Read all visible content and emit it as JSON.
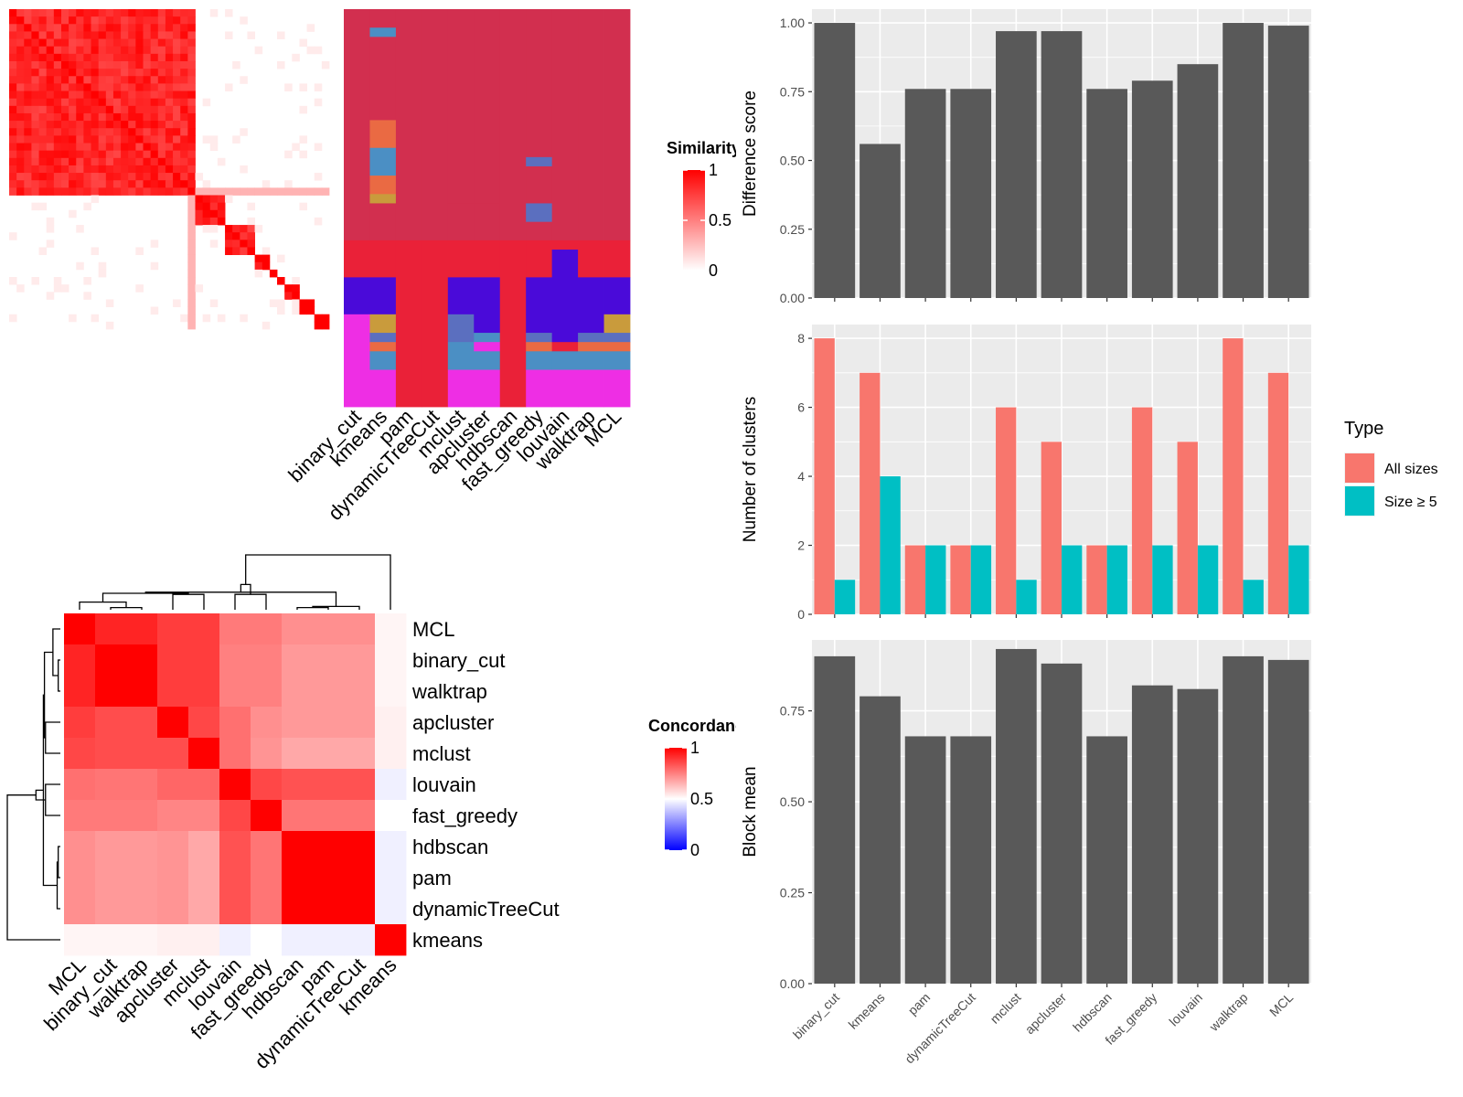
{
  "chart_data": [
    {
      "id": "similarity-heatmap",
      "type": "heatmap",
      "title": "",
      "legend": {
        "title": "Similarity",
        "ticks": [
          "1",
          "0.5",
          "0"
        ],
        "low_color": "#ffffff",
        "high_color": "#ff0000"
      },
      "size": 43,
      "blocks": [
        {
          "start": 0,
          "end": 24,
          "value": 0.85
        },
        {
          "start": 25,
          "end": 28,
          "value": 0.9
        },
        {
          "start": 29,
          "end": 32,
          "value": 0.85
        },
        {
          "start": 33,
          "end": 34,
          "value": 1
        },
        {
          "start": 35,
          "end": 35,
          "value": 1
        },
        {
          "start": 36,
          "end": 36,
          "value": 1
        },
        {
          "start": 37,
          "end": 38,
          "value": 1
        },
        {
          "start": 39,
          "end": 40,
          "value": 1
        },
        {
          "start": 41,
          "end": 42,
          "value": 1
        }
      ],
      "background": 0.0,
      "faint_band_row": 24,
      "faint_band_value": 0.3
    },
    {
      "id": "cluster-assignment-matrix",
      "type": "heatmap",
      "title": "",
      "methods": [
        "binary_cut",
        "kmeans",
        "pam",
        "dynamicTreeCut",
        "mclust",
        "apcluster",
        "hdbscan",
        "fast_greedy",
        "louvain",
        "walktrap",
        "MCL"
      ],
      "palette": {
        "crimson": "#d22f4f",
        "red": "#ea2138",
        "blue": "#4a0ad9",
        "steel": "#4b8fc4",
        "magenta": "#ee2ee4",
        "salmon": "#ea6a43",
        "gold": "#c99b3c",
        "slate": "#5b6fbf"
      },
      "column_segments": [
        [
          [
            0,
            25,
            "crimson"
          ],
          [
            25,
            29,
            "red"
          ],
          [
            29,
            33,
            "blue"
          ],
          [
            33,
            43,
            "magenta"
          ]
        ],
        [
          [
            0,
            2,
            "crimson"
          ],
          [
            2,
            3,
            "steel"
          ],
          [
            3,
            12,
            "crimson"
          ],
          [
            12,
            15,
            "salmon"
          ],
          [
            15,
            18,
            "steel"
          ],
          [
            18,
            20,
            "salmon"
          ],
          [
            20,
            21,
            "gold"
          ],
          [
            21,
            25,
            "crimson"
          ],
          [
            25,
            29,
            "red"
          ],
          [
            29,
            33,
            "blue"
          ],
          [
            33,
            35,
            "gold"
          ],
          [
            35,
            36,
            "slate"
          ],
          [
            36,
            37,
            "salmon"
          ],
          [
            37,
            39,
            "steel"
          ],
          [
            39,
            43,
            "magenta"
          ]
        ],
        [
          [
            0,
            25,
            "crimson"
          ],
          [
            25,
            43,
            "red"
          ]
        ],
        [
          [
            0,
            25,
            "crimson"
          ],
          [
            25,
            43,
            "red"
          ]
        ],
        [
          [
            0,
            21,
            "crimson"
          ],
          [
            21,
            25,
            "crimson"
          ],
          [
            25,
            29,
            "red"
          ],
          [
            29,
            33,
            "blue"
          ],
          [
            33,
            36,
            "slate"
          ],
          [
            36,
            39,
            "steel"
          ],
          [
            39,
            43,
            "magenta"
          ]
        ],
        [
          [
            0,
            21,
            "crimson"
          ],
          [
            21,
            25,
            "crimson"
          ],
          [
            25,
            29,
            "red"
          ],
          [
            29,
            33,
            "blue"
          ],
          [
            33,
            35,
            "blue"
          ],
          [
            35,
            36,
            "steel"
          ],
          [
            36,
            37,
            "magenta"
          ],
          [
            37,
            39,
            "steel"
          ],
          [
            39,
            43,
            "magenta"
          ]
        ],
        [
          [
            0,
            25,
            "crimson"
          ],
          [
            25,
            43,
            "red"
          ]
        ],
        [
          [
            0,
            16,
            "crimson"
          ],
          [
            16,
            17,
            "slate"
          ],
          [
            17,
            21,
            "crimson"
          ],
          [
            21,
            23,
            "slate"
          ],
          [
            23,
            25,
            "crimson"
          ],
          [
            25,
            29,
            "red"
          ],
          [
            29,
            33,
            "blue"
          ],
          [
            33,
            35,
            "blue"
          ],
          [
            35,
            36,
            "slate"
          ],
          [
            36,
            37,
            "salmon"
          ],
          [
            37,
            39,
            "steel"
          ],
          [
            39,
            43,
            "magenta"
          ]
        ],
        [
          [
            0,
            25,
            "crimson"
          ],
          [
            25,
            26,
            "red"
          ],
          [
            26,
            36,
            "blue"
          ],
          [
            36,
            37,
            "red"
          ],
          [
            37,
            39,
            "steel"
          ],
          [
            39,
            43,
            "magenta"
          ]
        ],
        [
          [
            0,
            25,
            "crimson"
          ],
          [
            25,
            29,
            "red"
          ],
          [
            29,
            33,
            "blue"
          ],
          [
            33,
            35,
            "blue"
          ],
          [
            35,
            36,
            "slate"
          ],
          [
            36,
            37,
            "salmon"
          ],
          [
            37,
            39,
            "steel"
          ],
          [
            39,
            43,
            "magenta"
          ]
        ],
        [
          [
            0,
            25,
            "crimson"
          ],
          [
            25,
            29,
            "red"
          ],
          [
            29,
            33,
            "blue"
          ],
          [
            33,
            35,
            "gold"
          ],
          [
            35,
            36,
            "slate"
          ],
          [
            36,
            37,
            "salmon"
          ],
          [
            37,
            39,
            "steel"
          ],
          [
            39,
            43,
            "magenta"
          ]
        ]
      ]
    },
    {
      "id": "concordance-heatmap",
      "type": "heatmap",
      "title": "",
      "legend": {
        "title": "Concordance",
        "ticks": [
          "1",
          "0.5",
          "0"
        ],
        "low_color": "#0000ff",
        "mid_color": "#ffffff",
        "high_color": "#ff0000"
      },
      "rows": [
        "MCL",
        "binary_cut",
        "walktrap",
        "apcluster",
        "mclust",
        "louvain",
        "fast_greedy",
        "hdbscan",
        "pam",
        "dynamicTreeCut",
        "kmeans"
      ],
      "columns": [
        "MCL",
        "binary_cut",
        "walktrap",
        "apcluster",
        "mclust",
        "louvain",
        "fast_greedy",
        "hdbscan",
        "pam",
        "dynamicTreeCut",
        "kmeans"
      ],
      "values": [
        [
          1.0,
          0.93,
          0.93,
          0.88,
          0.88,
          0.76,
          0.76,
          0.72,
          0.72,
          0.72,
          0.52
        ],
        [
          0.93,
          1.0,
          1.0,
          0.88,
          0.88,
          0.75,
          0.75,
          0.7,
          0.7,
          0.7,
          0.52
        ],
        [
          0.93,
          1.0,
          1.0,
          0.88,
          0.88,
          0.75,
          0.75,
          0.7,
          0.7,
          0.7,
          0.52
        ],
        [
          0.88,
          0.85,
          0.85,
          1.0,
          0.86,
          0.78,
          0.72,
          0.7,
          0.7,
          0.7,
          0.53
        ],
        [
          0.86,
          0.85,
          0.85,
          0.85,
          1.0,
          0.78,
          0.71,
          0.67,
          0.67,
          0.67,
          0.53
        ],
        [
          0.78,
          0.77,
          0.77,
          0.8,
          0.8,
          1.0,
          0.86,
          0.84,
          0.84,
          0.84,
          0.47
        ],
        [
          0.76,
          0.76,
          0.76,
          0.74,
          0.74,
          0.86,
          1.0,
          0.77,
          0.77,
          0.77,
          0.5
        ],
        [
          0.72,
          0.7,
          0.7,
          0.71,
          0.67,
          0.84,
          0.77,
          1.0,
          1.0,
          1.0,
          0.47
        ],
        [
          0.72,
          0.7,
          0.7,
          0.71,
          0.67,
          0.84,
          0.77,
          1.0,
          1.0,
          1.0,
          0.47
        ],
        [
          0.72,
          0.7,
          0.7,
          0.71,
          0.67,
          0.84,
          0.77,
          1.0,
          1.0,
          1.0,
          0.47
        ],
        [
          0.52,
          0.52,
          0.52,
          0.53,
          0.53,
          0.47,
          0.5,
          0.47,
          0.47,
          0.47,
          1.0
        ]
      ]
    },
    {
      "id": "difference-score",
      "type": "bar",
      "title": "",
      "xlabel": "",
      "ylabel": "Difference score",
      "categories": [
        "binary_cut",
        "kmeans",
        "pam",
        "dynamicTreeCut",
        "mclust",
        "apcluster",
        "hdbscan",
        "fast_greedy",
        "louvain",
        "walktrap",
        "MCL"
      ],
      "values": [
        1.0,
        0.56,
        0.76,
        0.76,
        0.97,
        0.97,
        0.76,
        0.79,
        0.85,
        1.0,
        0.99
      ],
      "ylim": [
        0,
        1.05
      ],
      "yticks": [
        "0.00",
        "0.25",
        "0.50",
        "0.75",
        "1.00"
      ],
      "bar_color": "#595959",
      "panel_color": "#ebebeb",
      "grid": true
    },
    {
      "id": "number-of-clusters",
      "type": "bar",
      "title": "",
      "xlabel": "",
      "ylabel": "Number of clusters",
      "categories": [
        "binary_cut",
        "kmeans",
        "pam",
        "dynamicTreeCut",
        "mclust",
        "apcluster",
        "hdbscan",
        "fast_greedy",
        "louvain",
        "walktrap",
        "MCL"
      ],
      "series": [
        {
          "name": "All sizes",
          "color": "#f8766d",
          "values": [
            8,
            7,
            2,
            2,
            6,
            5,
            2,
            6,
            5,
            8,
            7
          ]
        },
        {
          "name": "Size ≥ 5",
          "color": "#00bfc4",
          "values": [
            1,
            4,
            2,
            2,
            1,
            2,
            2,
            2,
            2,
            1,
            2
          ]
        }
      ],
      "ylim": [
        0,
        8.4
      ],
      "yticks": [
        "0",
        "2",
        "4",
        "6",
        "8"
      ],
      "legend": {
        "title": "Type",
        "placement": "right"
      },
      "panel_color": "#ebebeb",
      "grid": true
    },
    {
      "id": "block-mean",
      "type": "bar",
      "title": "",
      "xlabel": "",
      "ylabel": "Block mean",
      "categories": [
        "binary_cut",
        "kmeans",
        "pam",
        "dynamicTreeCut",
        "mclust",
        "apcluster",
        "hdbscan",
        "fast_greedy",
        "louvain",
        "walktrap",
        "MCL"
      ],
      "values": [
        0.9,
        0.79,
        0.68,
        0.68,
        0.92,
        0.88,
        0.68,
        0.82,
        0.81,
        0.9,
        0.89
      ],
      "ylim": [
        0,
        0.945
      ],
      "yticks": [
        "0.00",
        "0.25",
        "0.50",
        "0.75"
      ],
      "bar_color": "#595959",
      "panel_color": "#ebebeb",
      "grid": true
    }
  ]
}
